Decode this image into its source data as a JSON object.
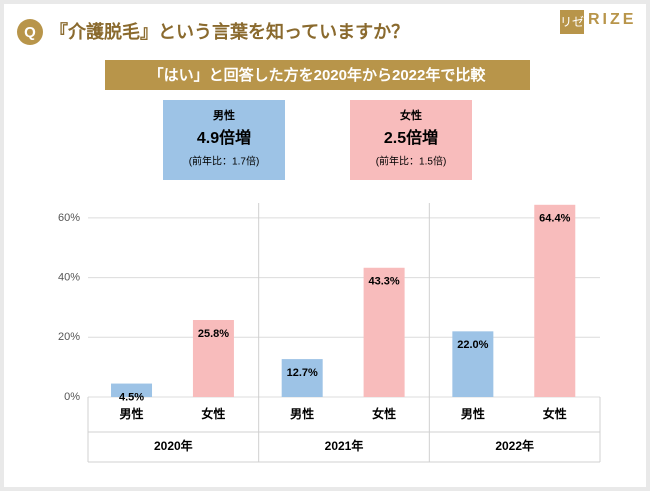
{
  "question_mark": "Q",
  "title": "『介護脱毛』という言葉を知っていますか？",
  "logo": {
    "mark": "リゼ",
    "name": "RIZE"
  },
  "banner": "「はい」と回答した方を2020年から2022年で比較",
  "summary": [
    {
      "label": "男性",
      "value": "4.9倍増",
      "note": "(前年比：1.7倍)"
    },
    {
      "label": "女性",
      "value": "2.5倍増",
      "note": "(前年比：1.5倍)"
    }
  ],
  "chart_data": {
    "type": "bar",
    "categories": [
      "2020年",
      "2021年",
      "2022年"
    ],
    "series": [
      {
        "name": "男性",
        "color": "#9dc3e6",
        "values": [
          4.5,
          12.7,
          22.0
        ],
        "value_labels": [
          "4.5%",
          "12.7%",
          "22.0%"
        ]
      },
      {
        "name": "女性",
        "color": "#f8bcbc",
        "values": [
          25.8,
          43.3,
          64.4
        ],
        "value_labels": [
          "25.8%",
          "43.3%",
          "64.4%"
        ]
      }
    ],
    "ylim": [
      0,
      65
    ],
    "yticks": [
      {
        "value": 0,
        "label": "0%"
      },
      {
        "value": 20,
        "label": "20%"
      },
      {
        "value": 40,
        "label": "40%"
      },
      {
        "value": 60,
        "label": "60%"
      }
    ],
    "grid": true
  }
}
